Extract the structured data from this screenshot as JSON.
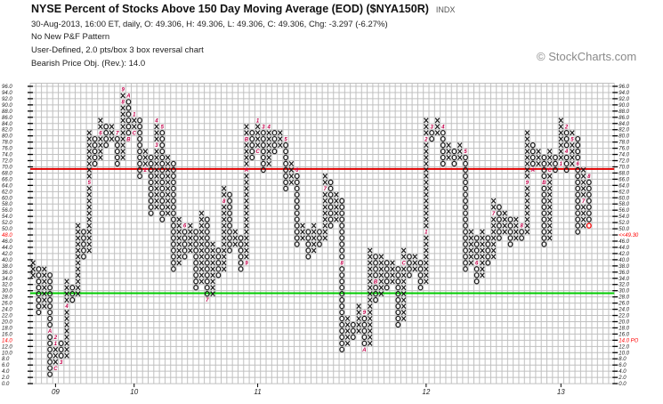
{
  "header": {
    "title": "NYSE Percent of Stocks Above 150 Day Moving Average (EOD) ($NYA150R)",
    "ticker_type": "INDX",
    "quote_line": "30-Aug-2013, 16:00 ET, daily, O: 49.306, H: 49.306, L: 49.306, C: 49.306, Chg: -3.297 (-6.27%)",
    "pattern": "No New P&F Pattern",
    "settings": "User-Defined, 2.0 pts/box 3 box reversal chart",
    "price_objective": "Bearish Price Obj. (Rev.): 14.0",
    "brand": "© StockCharts.com"
  },
  "colors": {
    "symbol": "#1a1a1a",
    "month_label": "#c4004a",
    "resistance": "#e00000",
    "support": "#00cc00",
    "grid": "#c0c0c0",
    "highlight": "#ff0000"
  },
  "chart_data": {
    "type": "scatter",
    "title": "NYSE Percent of Stocks Above 150 Day Moving Average (EOD) ($NYA150R)",
    "box_size": 2.0,
    "reversal": 3,
    "ylim": [
      0,
      96
    ],
    "y_tick_step": 2,
    "grid": true,
    "left_axis_highlight": [
      48,
      14
    ],
    "right_axis_overrides": {
      "48": "<<49.30",
      "14": "14.0 PO"
    },
    "resistance_level": 69.3,
    "support_level": 29.2,
    "last_box_highlight": true,
    "x_labels": [
      {
        "col": 5,
        "text": "09"
      },
      {
        "col": 19,
        "text": "10"
      },
      {
        "col": 41,
        "text": "11"
      },
      {
        "col": 71,
        "text": "12"
      },
      {
        "col": 95,
        "text": "13"
      }
    ],
    "columns": [
      {
        "t": "X",
        "lo": 34,
        "hi": 38
      },
      {
        "t": "O",
        "lo": 22,
        "hi": 36
      },
      {
        "t": "X",
        "lo": 24,
        "hi": 36
      },
      {
        "t": "O",
        "lo": 2,
        "hi": 34,
        "m": {
          "16": "A"
        }
      },
      {
        "t": "X",
        "lo": 4,
        "hi": 14,
        "m": {
          "4": "C",
          "12": "1",
          "14": "2"
        }
      },
      {
        "t": "O",
        "lo": 6,
        "hi": 12,
        "m": {
          "6": "3"
        }
      },
      {
        "t": "X",
        "lo": 8,
        "hi": 32,
        "m": {
          "24": "4"
        }
      },
      {
        "t": "O",
        "lo": 26,
        "hi": 30
      },
      {
        "t": "X",
        "lo": 28,
        "hi": 50
      },
      {
        "t": "O",
        "lo": 40,
        "hi": 48
      },
      {
        "t": "X",
        "lo": 42,
        "hi": 80,
        "m": {
          "64": "5"
        }
      },
      {
        "t": "O",
        "lo": 70,
        "hi": 78
      },
      {
        "t": "X",
        "lo": 72,
        "hi": 84,
        "m": {
          "80": "6"
        }
      },
      {
        "t": "O",
        "lo": 76,
        "hi": 82
      },
      {
        "t": "X",
        "lo": 78,
        "hi": 82
      },
      {
        "t": "O",
        "lo": 70,
        "hi": 80,
        "m": {
          "80": "7"
        }
      },
      {
        "t": "X",
        "lo": 72,
        "hi": 94,
        "m": {
          "90": "8",
          "94": "9"
        }
      },
      {
        "t": "O",
        "lo": 78,
        "hi": 92,
        "m": {
          "92": "A",
          "78": "B"
        }
      },
      {
        "t": "X",
        "lo": 80,
        "hi": 86,
        "m": {
          "80": "C",
          "86": "1"
        }
      },
      {
        "t": "O",
        "lo": 66,
        "hi": 84
      },
      {
        "t": "X",
        "lo": 68,
        "hi": 74,
        "m": {
          "68": "2"
        }
      },
      {
        "t": "O",
        "lo": 54,
        "hi": 72
      },
      {
        "t": "X",
        "lo": 56,
        "hi": 84,
        "m": {
          "76": "3",
          "84": "4"
        }
      },
      {
        "t": "O",
        "lo": 52,
        "hi": 82,
        "m": {
          "82": "5"
        }
      },
      {
        "t": "X",
        "lo": 54,
        "hi": 72
      },
      {
        "t": "O",
        "lo": 36,
        "hi": 70
      },
      {
        "t": "X",
        "lo": 38,
        "hi": 52
      },
      {
        "t": "O",
        "lo": 40,
        "hi": 50,
        "m": {
          "50": "6"
        }
      },
      {
        "t": "X",
        "lo": 42,
        "hi": 50
      },
      {
        "t": "O",
        "lo": 30,
        "hi": 48
      },
      {
        "t": "X",
        "lo": 32,
        "hi": 54
      },
      {
        "t": "O",
        "lo": 26,
        "hi": 52,
        "m": {
          "26": "7"
        }
      },
      {
        "t": "X",
        "lo": 28,
        "hi": 44
      },
      {
        "t": "O",
        "lo": 34,
        "hi": 42
      },
      {
        "t": "X",
        "lo": 36,
        "hi": 62,
        "m": {
          "58": "8"
        }
      },
      {
        "t": "O",
        "lo": 42,
        "hi": 60
      },
      {
        "t": "X",
        "lo": 44,
        "hi": 48
      },
      {
        "t": "O",
        "lo": 36,
        "hi": 46
      },
      {
        "t": "X",
        "lo": 38,
        "hi": 82,
        "m": {
          "38": "9",
          "68": "A",
          "78": "B"
        }
      },
      {
        "t": "O",
        "lo": 72,
        "hi": 80
      },
      {
        "t": "X",
        "lo": 74,
        "hi": 84,
        "m": {
          "74": "C",
          "84": "1"
        }
      },
      {
        "t": "O",
        "lo": 68,
        "hi": 82,
        "m": {
          "82": "3"
        }
      },
      {
        "t": "X",
        "lo": 70,
        "hi": 82,
        "m": {
          "82": "4"
        }
      },
      {
        "t": "O",
        "lo": 74,
        "hi": 80
      },
      {
        "t": "X",
        "lo": 76,
        "hi": 80
      },
      {
        "t": "O",
        "lo": 62,
        "hi": 78,
        "m": {
          "78": "5"
        }
      },
      {
        "t": "X",
        "lo": 64,
        "hi": 70
      },
      {
        "t": "O",
        "lo": 44,
        "hi": 68,
        "m": {
          "68": "6"
        }
      },
      {
        "t": "X",
        "lo": 46,
        "hi": 50
      },
      {
        "t": "O",
        "lo": 40,
        "hi": 48
      },
      {
        "t": "X",
        "lo": 42,
        "hi": 50
      },
      {
        "t": "O",
        "lo": 44,
        "hi": 48
      },
      {
        "t": "X",
        "lo": 46,
        "hi": 66,
        "m": {
          "62": "7"
        }
      },
      {
        "t": "O",
        "lo": 50,
        "hi": 64
      },
      {
        "t": "X",
        "lo": 52,
        "hi": 60
      },
      {
        "t": "O",
        "lo": 10,
        "hi": 58,
        "m": {
          "38": "8"
        }
      },
      {
        "t": "X",
        "lo": 12,
        "hi": 20
      },
      {
        "t": "O",
        "lo": 14,
        "hi": 18
      },
      {
        "t": "X",
        "lo": 16,
        "hi": 24
      },
      {
        "t": "O",
        "lo": 10,
        "hi": 22,
        "m": {
          "22": "9",
          "10": "A"
        }
      },
      {
        "t": "X",
        "lo": 12,
        "hi": 42
      },
      {
        "t": "O",
        "lo": 26,
        "hi": 40,
        "m": {
          "32": "B"
        }
      },
      {
        "t": "X",
        "lo": 28,
        "hi": 40
      },
      {
        "t": "O",
        "lo": 30,
        "hi": 38
      },
      {
        "t": "X",
        "lo": 32,
        "hi": 38
      },
      {
        "t": "O",
        "lo": 18,
        "hi": 36
      },
      {
        "t": "X",
        "lo": 20,
        "hi": 42,
        "m": {
          "38": "C"
        }
      },
      {
        "t": "O",
        "lo": 34,
        "hi": 40
      },
      {
        "t": "X",
        "lo": 36,
        "hi": 40
      },
      {
        "t": "O",
        "lo": 30,
        "hi": 38
      },
      {
        "t": "X",
        "lo": 32,
        "hi": 84,
        "m": {
          "48": "1",
          "78": "2"
        }
      },
      {
        "t": "O",
        "lo": 78,
        "hi": 82,
        "m": {
          "82": "3"
        }
      },
      {
        "t": "X",
        "lo": 80,
        "hi": 84
      },
      {
        "t": "O",
        "lo": 70,
        "hi": 82,
        "m": {
          "82": "4"
        }
      },
      {
        "t": "X",
        "lo": 72,
        "hi": 76
      },
      {
        "t": "O",
        "lo": 70,
        "hi": 74
      },
      {
        "t": "X",
        "lo": 72,
        "hi": 76
      },
      {
        "t": "O",
        "lo": 36,
        "hi": 74,
        "m": {
          "74": "5"
        }
      },
      {
        "t": "X",
        "lo": 38,
        "hi": 48
      },
      {
        "t": "O",
        "lo": 32,
        "hi": 46,
        "m": {
          "38": "6"
        }
      },
      {
        "t": "X",
        "lo": 34,
        "hi": 48
      },
      {
        "t": "O",
        "lo": 38,
        "hi": 46
      },
      {
        "t": "X",
        "lo": 40,
        "hi": 58,
        "m": {
          "54": "7"
        }
      },
      {
        "t": "O",
        "lo": 46,
        "hi": 56
      },
      {
        "t": "X",
        "lo": 48,
        "hi": 54
      },
      {
        "t": "O",
        "lo": 44,
        "hi": 52
      },
      {
        "t": "X",
        "lo": 46,
        "hi": 52
      },
      {
        "t": "O",
        "lo": 46,
        "hi": 50,
        "m": {
          "50": "8"
        }
      },
      {
        "t": "X",
        "lo": 48,
        "hi": 80,
        "m": {
          "64": "9"
        }
      },
      {
        "t": "O",
        "lo": 68,
        "hi": 76,
        "m": {
          "68": "A"
        }
      },
      {
        "t": "X",
        "lo": 70,
        "hi": 74
      },
      {
        "t": "O",
        "lo": 44,
        "hi": 72,
        "m": {
          "64": "B"
        }
      },
      {
        "t": "X",
        "lo": 46,
        "hi": 74,
        "m": {
          "68": "C"
        }
      },
      {
        "t": "O",
        "lo": 68,
        "hi": 72
      },
      {
        "t": "X",
        "lo": 70,
        "hi": 84,
        "m": {
          "70": "1"
        }
      },
      {
        "t": "O",
        "lo": 68,
        "hi": 82,
        "m": {
          "82": "2",
          "74": "4"
        }
      },
      {
        "t": "X",
        "lo": 70,
        "hi": 80,
        "m": {
          "78": "5"
        }
      },
      {
        "t": "O",
        "lo": 48,
        "hi": 78,
        "m": {
          "70": "6"
        }
      },
      {
        "t": "X",
        "lo": 50,
        "hi": 68,
        "m": {
          "58": "7"
        }
      },
      {
        "t": "O",
        "lo": 50,
        "hi": 66,
        "m": {
          "66": "8"
        }
      }
    ]
  }
}
